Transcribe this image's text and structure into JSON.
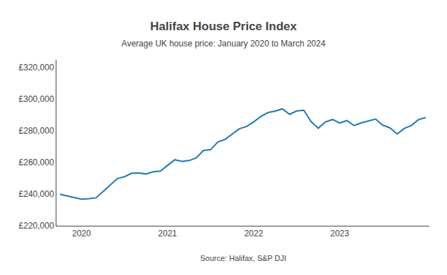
{
  "chart_data": {
    "type": "line",
    "title": "Halifax House Price Index",
    "subtitle": "Average UK house price: January 2020 to March 2024",
    "source": "Source: Halifax, S&P DJI",
    "categories": [
      null,
      null,
      null,
      "2020",
      null,
      null,
      null,
      null,
      null,
      null,
      null,
      null,
      null,
      null,
      null,
      "2021",
      null,
      null,
      null,
      null,
      null,
      null,
      null,
      null,
      null,
      null,
      null,
      "2022",
      null,
      null,
      null,
      null,
      null,
      null,
      null,
      null,
      null,
      null,
      null,
      "2023",
      null,
      null,
      null,
      null,
      null,
      null,
      null,
      null,
      null,
      null,
      null,
      null
    ],
    "values": [
      239927,
      238772,
      237808,
      236800,
      237110,
      237616,
      241604,
      245747,
      249870,
      251029,
      253243,
      253374,
      252765,
      254163,
      254606,
      258204,
      261743,
      260736,
      261221,
      262954,
      267587,
      268136,
      272992,
      274615,
      278123,
      281347,
      282753,
      285703,
      289099,
      291618,
      292505,
      293992,
      290515,
      292598,
      293083,
      285932,
      281684,
      285660,
      287215,
      285009,
      286532,
      283415,
      285044,
      286274,
      287506,
      283615,
      281974,
      278031,
      281544,
      283479,
      287227,
      288430
    ],
    "ylim": [
      220000,
      325000
    ],
    "yticks": [
      {
        "value": 220000,
        "label": "£220,000"
      },
      {
        "value": 240000,
        "label": "£240,000"
      },
      {
        "value": 260000,
        "label": "£260,000"
      },
      {
        "value": 280000,
        "label": "£280,000"
      },
      {
        "value": 300000,
        "label": "£300,000"
      },
      {
        "value": 320000,
        "label": "£320,000"
      }
    ],
    "grid": false
  }
}
